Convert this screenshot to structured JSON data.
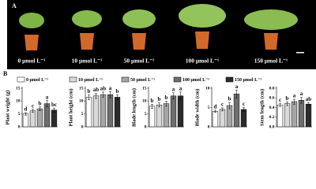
{
  "panel_a": {
    "label": "A",
    "captions": [
      "0 μmol L⁻¹",
      "10 μmol L⁻¹",
      "50 μmol L⁻¹",
      "100 μmol L⁻¹",
      "150 μmol L⁻¹"
    ]
  },
  "panel_b": {
    "label": "B"
  },
  "legend": {
    "names": [
      "0 μmol L⁻¹",
      "10 μmol L⁻¹",
      "50 μmol L⁻¹",
      "100 μmol L⁻¹",
      "150 μmol L⁻¹"
    ],
    "colors": [
      "#ffffff",
      "#d9d9d9",
      "#a6a6a6",
      "#6e6e6e",
      "#2b2b2b"
    ]
  },
  "chart_data": [
    {
      "type": "bar",
      "y_label": "Plant weight (g)",
      "values": [
        5,
        6.2,
        7,
        9,
        6.5
      ],
      "errors": [
        0.5,
        0.6,
        0.7,
        1.2,
        0.8
      ],
      "letters": [
        "d",
        "c",
        "b",
        "a",
        "bc"
      ],
      "ylim": [
        0,
        15
      ],
      "yticks": [
        0,
        5,
        10,
        15
      ]
    },
    {
      "type": "bar",
      "y_label": "Plant height (cm)",
      "values": [
        11.5,
        12,
        12.5,
        12.5,
        11.5
      ],
      "errors": [
        1,
        1,
        1,
        1.2,
        1
      ],
      "letters": [
        "b",
        "ab",
        "ab",
        "a",
        "b"
      ],
      "ylim": [
        0,
        15
      ],
      "yticks": [
        0,
        5,
        10,
        15
      ]
    },
    {
      "type": "bar",
      "y_label": "Blade length (cm)",
      "values": [
        8,
        8.5,
        9,
        12,
        12
      ],
      "errors": [
        0.8,
        0.8,
        1,
        1.2,
        1.5
      ],
      "letters": [
        "b",
        "b",
        "b",
        "a",
        "a"
      ],
      "ylim": [
        0,
        15
      ],
      "yticks": [
        0,
        5,
        10,
        15
      ]
    },
    {
      "type": "bar",
      "y_label": "Blade width (cm)",
      "values": [
        4,
        4.5,
        5.5,
        8.5,
        4.5
      ],
      "errors": [
        0.3,
        0.4,
        0.8,
        1,
        0.5
      ],
      "letters": [
        "d",
        "c",
        "b",
        "a",
        "c"
      ],
      "ylim": [
        0,
        10
      ],
      "yticks": [
        0,
        5,
        10
      ]
    },
    {
      "type": "bar",
      "y_label": "Stem length (cm)",
      "values": [
        0.45,
        0.48,
        0.52,
        0.55,
        0.47
      ],
      "errors": [
        0.03,
        0.04,
        0.05,
        0.06,
        0.03
      ],
      "letters": [
        "c",
        "b",
        "a",
        "a",
        "ab"
      ],
      "ylim": [
        0,
        0.8
      ],
      "yticks": [
        {
          "value": 0,
          "label": "0.0"
        },
        0.2,
        0.4,
        0.6,
        0.8
      ]
    }
  ]
}
